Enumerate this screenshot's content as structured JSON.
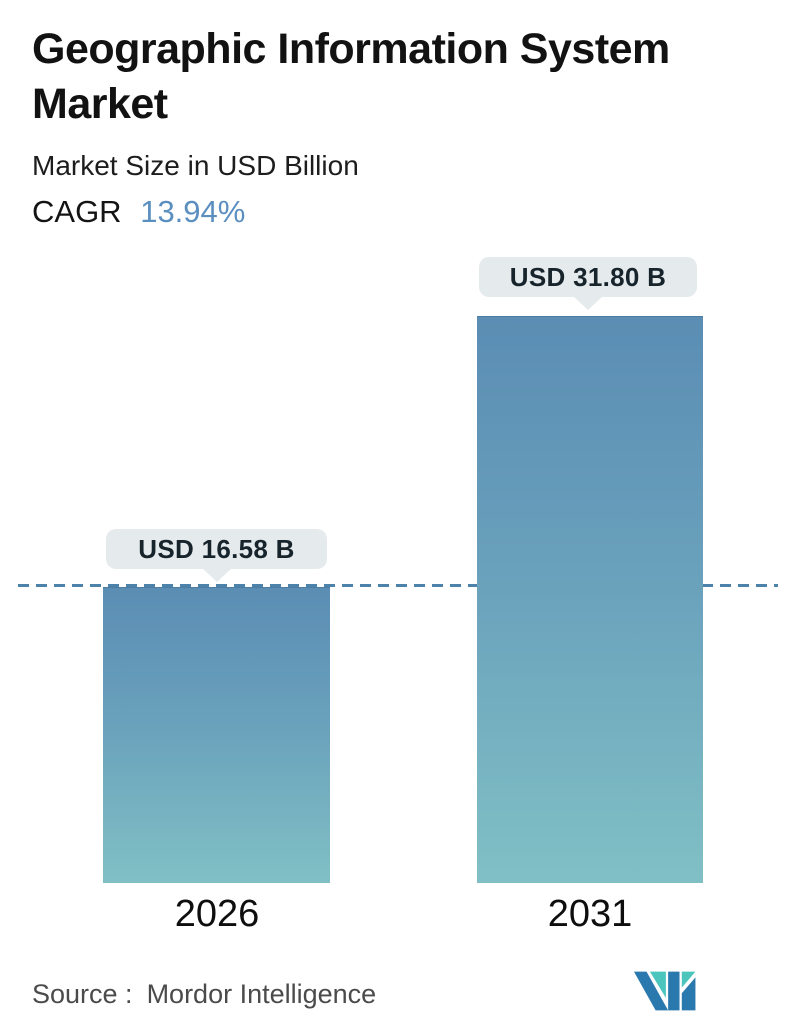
{
  "header": {
    "title_line1": "Geographic Information System",
    "title_line2": "Market",
    "subtitle": "Market Size in USD Billion",
    "cagr_label": "CAGR",
    "cagr_value": "13.94%"
  },
  "chart_data": {
    "type": "bar",
    "title": "Geographic Information System Market",
    "subtitle": "Market Size in USD Billion",
    "cagr_percent": "13.94%",
    "unit": "USD Billion",
    "categories": [
      "2026",
      "2031"
    ],
    "values": [
      16.58,
      31.8
    ],
    "value_labels": [
      "USD 16.58 B",
      "USD 31.80 B"
    ],
    "ylim": [
      0,
      31.8
    ],
    "grid": false,
    "legend": false,
    "reference_line": {
      "value": 16.58,
      "style": "dashed",
      "color": "#4d82ab"
    },
    "bar_gradient": {
      "top": "#5b8db4",
      "bottom": "#80c0c5"
    }
  },
  "footer": {
    "source_label": "Source :",
    "source_value": "Mordor Intelligence",
    "logo_icon": "mordor-intelligence-logo",
    "logo_colors": {
      "teal": "#4cc5bd",
      "blue": "#2a79ae"
    }
  },
  "colors": {
    "background": "#ffffff",
    "text_primary": "#121212",
    "cagr_accent": "#5b8fc0",
    "badge_background": "#e5ebed",
    "badge_text": "#17242c",
    "source_text": "#4b4b4b"
  }
}
